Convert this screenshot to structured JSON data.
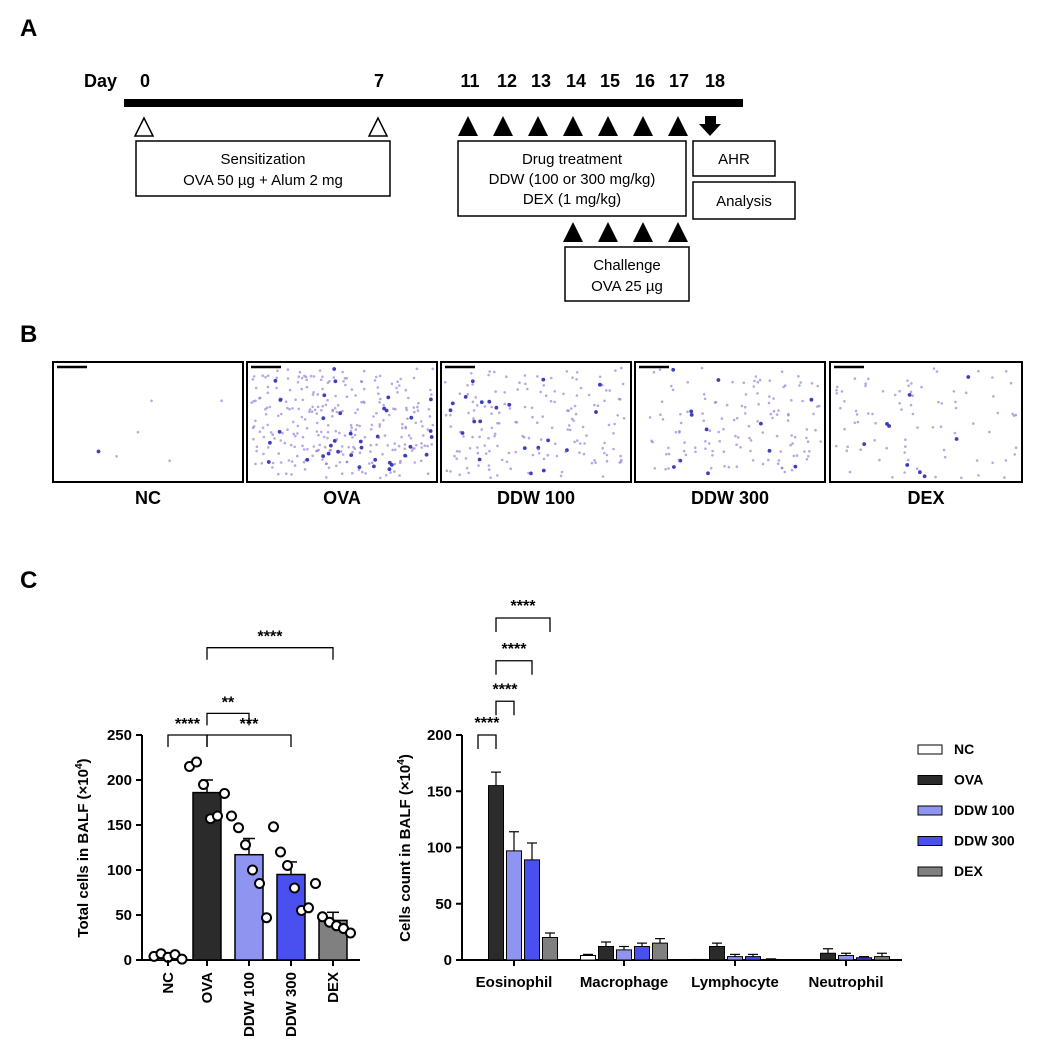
{
  "panel_labels": {
    "a": "A",
    "b": "B",
    "c": "C"
  },
  "timeline": {
    "day_label": "Day",
    "days": [
      "0",
      "7",
      "11",
      "12",
      "13",
      "14",
      "15",
      "16",
      "17",
      "18"
    ],
    "sensitization": {
      "title": "Sensitization",
      "detail": "OVA 50 µg + Alum 2 mg"
    },
    "drug": {
      "title": "Drug treatment",
      "detail1": "DDW (100 or 300 mg/kg)",
      "detail2": "DEX (1 mg/kg)"
    },
    "challenge": {
      "title": "Challenge",
      "detail": "OVA 25 µg"
    },
    "ahr": "AHR",
    "analysis": "Analysis"
  },
  "micrographs": {
    "labels": [
      "NC",
      "OVA",
      "DDW 100",
      "DDW 300",
      "DEX"
    ]
  },
  "colors": {
    "NC": "#ffffff",
    "OVA": "#2b2b2b",
    "DDW 100": "#8f94f0",
    "DDW 300": "#4a4ff0",
    "DEX": "#808080",
    "stain_purple": "#8a6cd0",
    "stain_dark": "#2a2ab0"
  },
  "chart_data": [
    {
      "type": "bar",
      "title": "",
      "ylabel_main": "Total cells in BALF (×10",
      "ylabel_exp": "4",
      "ylabel_close": ")",
      "categories": [
        "NC",
        "OVA",
        "DDW 100",
        "DDW 300",
        "DEX"
      ],
      "values": [
        5,
        186,
        117,
        95,
        44
      ],
      "errors": [
        1.5,
        14,
        18,
        14,
        9
      ],
      "points": [
        [
          4,
          7,
          3,
          6,
          1
        ],
        [
          215,
          220,
          195,
          157,
          160,
          185
        ],
        [
          160,
          147,
          128,
          100,
          85,
          47
        ],
        [
          148,
          120,
          105,
          80,
          55,
          58
        ],
        [
          85,
          48,
          42,
          38,
          35,
          30
        ]
      ],
      "ylim": [
        0,
        250
      ],
      "yticks": [
        0,
        50,
        100,
        150,
        200,
        250
      ],
      "significance": [
        {
          "from": 0,
          "to": 1,
          "label": "****",
          "level": 250
        },
        {
          "from": 1,
          "to": 3,
          "label": "***",
          "level": 250
        },
        {
          "from": 1,
          "to": 2,
          "label": "**",
          "level": 274
        },
        {
          "from": 1,
          "to": 4,
          "label": "****",
          "level": 347
        }
      ]
    },
    {
      "type": "bar",
      "title": "",
      "ylabel_main": "Cells count in BALF (×10",
      "ylabel_exp": "4",
      "ylabel_close": ")",
      "categories": [
        "Eosinophil",
        "Macrophage",
        "Lymphocyte",
        "Neutrophil"
      ],
      "series": [
        {
          "name": "NC",
          "values": [
            0,
            4,
            0.5,
            0
          ],
          "errors": [
            0,
            1,
            0,
            0
          ]
        },
        {
          "name": "OVA",
          "values": [
            155,
            12,
            12,
            6
          ],
          "errors": [
            12,
            4,
            3,
            4
          ]
        },
        {
          "name": "DDW 100",
          "values": [
            97,
            9,
            3,
            4
          ],
          "errors": [
            17,
            3,
            2,
            2
          ]
        },
        {
          "name": "DDW 300",
          "values": [
            89,
            12,
            3,
            2
          ],
          "errors": [
            15,
            3,
            2,
            1
          ]
        },
        {
          "name": "DEX",
          "values": [
            20,
            15,
            0.5,
            3
          ],
          "errors": [
            4,
            4,
            0.5,
            3
          ]
        }
      ],
      "ylim": [
        0,
        200
      ],
      "yticks": [
        0,
        50,
        100,
        150,
        200
      ],
      "significance": [
        {
          "from": 0,
          "to": 1,
          "label": "****",
          "level": 200
        },
        {
          "from": 1,
          "to": 2,
          "label": "****",
          "level": 230
        },
        {
          "from": 1,
          "to": 3,
          "label": "****",
          "level": 266
        },
        {
          "from": 1,
          "to": 4,
          "label": "****",
          "level": 304
        }
      ],
      "legend_position": "top-right"
    }
  ]
}
